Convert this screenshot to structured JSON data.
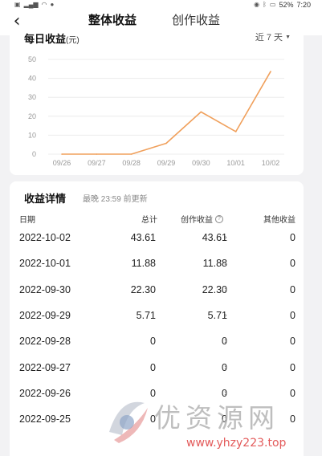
{
  "status_bar": {
    "battery": "52%",
    "time": "7:20"
  },
  "header": {
    "back_icon": "chevron-left-icon",
    "tabs": [
      {
        "label": "整体收益",
        "active": true
      },
      {
        "label": "创作收益",
        "active": false
      }
    ],
    "accent_color": "#e5332a"
  },
  "chart_card": {
    "title": "每日收益",
    "unit": "(元)",
    "range": "近 7 天"
  },
  "chart_data": {
    "type": "line",
    "x": [
      "09/26",
      "09/27",
      "09/28",
      "09/29",
      "09/30",
      "10/01",
      "10/02"
    ],
    "series": [
      {
        "values": [
          0,
          0,
          0,
          5.71,
          22.3,
          11.88,
          43.61
        ],
        "color": "#f0a05c"
      }
    ],
    "yticks": [
      0,
      10,
      20,
      30,
      40,
      50
    ],
    "ylim": [
      0,
      50
    ],
    "grid": true
  },
  "details": {
    "title": "收益详情",
    "updated": "最晚 23:59 前更新",
    "columns": {
      "date": "日期",
      "total": "总计",
      "creation": "创作收益",
      "other": "其他收益"
    },
    "rows": [
      {
        "date": "2022-10-02",
        "total": "43.61",
        "creation": "43.61",
        "other": "0"
      },
      {
        "date": "2022-10-01",
        "total": "11.88",
        "creation": "11.88",
        "other": "0"
      },
      {
        "date": "2022-09-30",
        "total": "22.30",
        "creation": "22.30",
        "other": "0"
      },
      {
        "date": "2022-09-29",
        "total": "5.71",
        "creation": "5.71",
        "other": "0"
      },
      {
        "date": "2022-09-28",
        "total": "0",
        "creation": "0",
        "other": "0"
      },
      {
        "date": "2022-09-27",
        "total": "0",
        "creation": "0",
        "other": "0"
      },
      {
        "date": "2022-09-26",
        "total": "0",
        "creation": "0",
        "other": "0"
      },
      {
        "date": "2022-09-25",
        "total": "0",
        "creation": "0",
        "other": "0"
      }
    ]
  },
  "watermark": {
    "text": "优资源网",
    "url": "www.yhzy223.top"
  }
}
